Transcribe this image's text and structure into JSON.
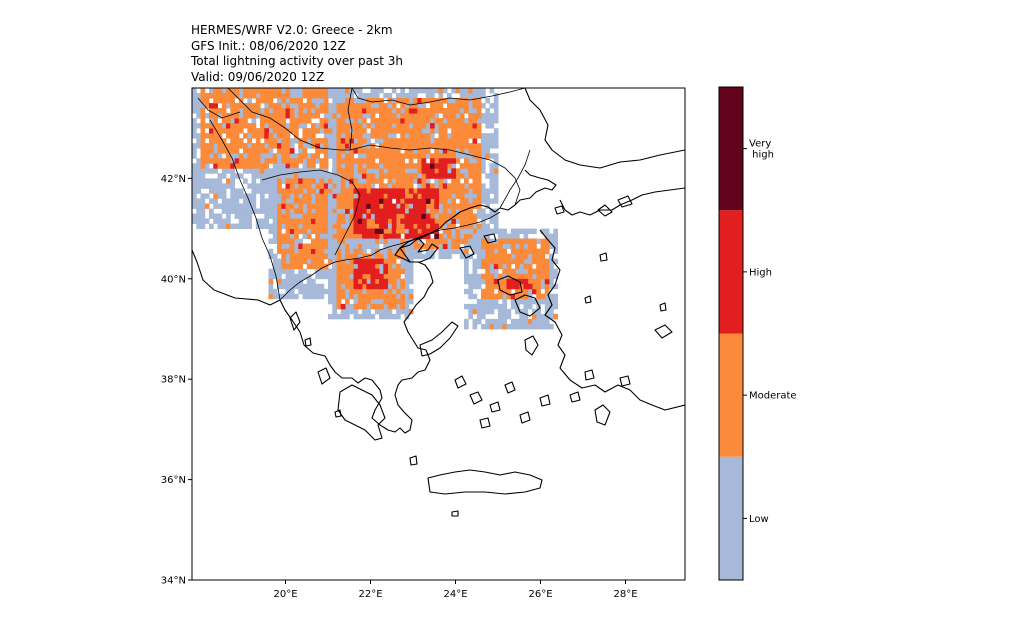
{
  "title": {
    "line1": "HERMES/WRF V2.0: Greece - 2km",
    "line2": "GFS Init.: 08/06/2020 12Z",
    "line3": "Total lightning activity over past 3h",
    "line4": "Valid: 09/06/2020 12Z"
  },
  "map": {
    "lon_range": [
      17.8,
      29.4
    ],
    "lat_range": [
      34.0,
      43.8
    ],
    "x_ticks": [
      {
        "value": 20,
        "label": "20°E"
      },
      {
        "value": 22,
        "label": "22°E"
      },
      {
        "value": 24,
        "label": "24°E"
      },
      {
        "value": 26,
        "label": "26°E"
      },
      {
        "value": 28,
        "label": "28°E"
      }
    ],
    "y_ticks": [
      {
        "value": 34,
        "label": "34°N"
      },
      {
        "value": 36,
        "label": "36°N"
      },
      {
        "value": 38,
        "label": "38°N"
      },
      {
        "value": 40,
        "label": "40°N"
      },
      {
        "value": 42,
        "label": "42°N"
      }
    ]
  },
  "colorbar": {
    "levels": [
      {
        "label": "Low",
        "color": "#a6b9d9"
      },
      {
        "label": "Moderate",
        "color": "#fb8b3a"
      },
      {
        "label": "High",
        "color": "#e21e1e"
      },
      {
        "label": "Very\n high",
        "color": "#62051c"
      }
    ]
  },
  "lightning_regions": [
    {
      "level": 1,
      "lon": [
        17.8,
        21.6
      ],
      "lat": [
        41.0,
        43.8
      ]
    },
    {
      "level": 2,
      "lon": [
        18.0,
        21.0
      ],
      "lat": [
        42.2,
        43.8
      ]
    },
    {
      "level": 1,
      "lon": [
        19.6,
        22.0
      ],
      "lat": [
        39.6,
        42.2
      ]
    },
    {
      "level": 2,
      "lon": [
        19.8,
        21.6
      ],
      "lat": [
        40.2,
        42.0
      ]
    },
    {
      "level": 1,
      "lon": [
        21.0,
        25.0
      ],
      "lat": [
        40.4,
        43.8
      ]
    },
    {
      "level": 2,
      "lon": [
        21.2,
        24.6
      ],
      "lat": [
        40.6,
        43.6
      ]
    },
    {
      "level": 3,
      "lon": [
        21.6,
        23.6
      ],
      "lat": [
        40.8,
        41.8
      ]
    },
    {
      "level": 3,
      "lon": [
        23.2,
        24.0
      ],
      "lat": [
        42.0,
        42.4
      ]
    },
    {
      "level": 1,
      "lon": [
        21.0,
        23.0
      ],
      "lat": [
        39.2,
        40.8
      ]
    },
    {
      "level": 2,
      "lon": [
        21.2,
        22.8
      ],
      "lat": [
        39.4,
        40.6
      ]
    },
    {
      "level": 3,
      "lon": [
        21.6,
        22.4
      ],
      "lat": [
        39.8,
        40.4
      ]
    },
    {
      "level": 1,
      "lon": [
        24.2,
        26.4
      ],
      "lat": [
        39.0,
        41.0
      ]
    },
    {
      "level": 2,
      "lon": [
        24.6,
        26.2
      ],
      "lat": [
        39.6,
        40.8
      ]
    },
    {
      "level": 3,
      "lon": [
        25.2,
        25.8
      ],
      "lat": [
        39.8,
        40.0
      ]
    }
  ]
}
